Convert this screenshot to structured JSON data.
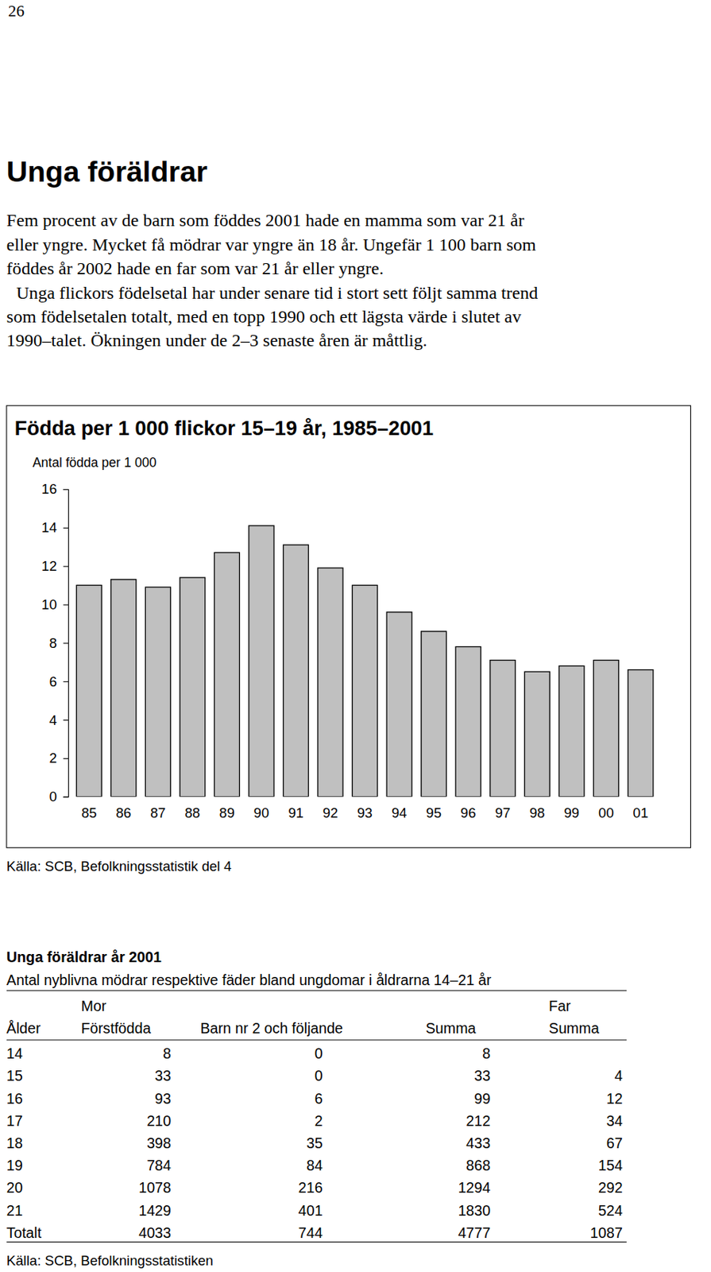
{
  "page_number": "26",
  "heading": "Unga föräldrar",
  "paragraph_lines": [
    "Fem procent av de barn som föddes 2001 hade en mamma som var 21 år",
    "eller yngre. Mycket få mödrar var yngre än 18 år. Ungefär 1 100 barn som",
    "föddes år 2002 hade en far som var 21 år eller yngre.",
    "Unga flickors födelsetal har under senare tid  i stort sett följt samma trend",
    "som födelsetalen totalt,  med en topp 1990 och ett lägsta värde i slutet av",
    "1990–talet. Ökningen under de 2–3 senaste åren är måttlig."
  ],
  "chart_data": {
    "type": "bar",
    "title": "Födda per 1 000 flickor 15–19 år, 1985–2001",
    "y_label": "Antal födda per 1 000",
    "categories": [
      "85",
      "86",
      "87",
      "88",
      "89",
      "90",
      "91",
      "92",
      "93",
      "94",
      "95",
      "96",
      "97",
      "98",
      "99",
      "00",
      "01"
    ],
    "values": [
      11.0,
      11.3,
      10.9,
      11.4,
      12.7,
      14.1,
      13.1,
      11.9,
      11.0,
      9.6,
      8.6,
      7.8,
      7.1,
      6.5,
      6.8,
      7.1,
      6.6
    ],
    "color": "#c0c0c0",
    "ylim": [
      0,
      16
    ],
    "yticks": [
      0,
      2,
      4,
      6,
      8,
      10,
      12,
      14,
      16
    ],
    "grid": false,
    "source": "Källa: SCB, Befolkningsstatistik del 4"
  },
  "table": {
    "title": "Unga föräldrar år 2001",
    "subtitle": "Antal nyblivna mödrar respektive fäder bland ungdomar i åldrarna 14–21 år",
    "header_top": [
      null,
      "Mor",
      null,
      null,
      "Far"
    ],
    "header": [
      "Ålder",
      "Förstfödda",
      "Barn nr 2 och följande",
      "Summa",
      "Summa"
    ],
    "rows": [
      [
        14,
        8,
        0,
        8,
        null
      ],
      [
        15,
        33,
        0,
        33,
        4
      ],
      [
        16,
        93,
        6,
        99,
        12
      ],
      [
        17,
        210,
        2,
        212,
        34
      ],
      [
        18,
        398,
        35,
        433,
        67
      ],
      [
        19,
        784,
        84,
        868,
        154
      ],
      [
        20,
        1078,
        216,
        1294,
        292
      ],
      [
        21,
        1429,
        401,
        1830,
        524
      ],
      [
        "Totalt",
        4033,
        744,
        4777,
        1087
      ]
    ],
    "source": "Källa: SCB, Befolkningsstatistiken"
  }
}
